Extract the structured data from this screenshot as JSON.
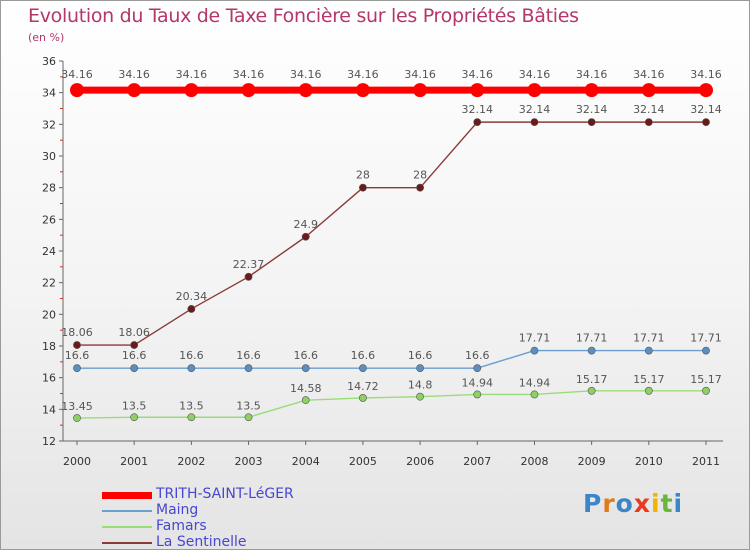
{
  "title": "Evolution du Taux de Taxe Foncière sur les Propriétés Bâties",
  "unit": "(en %)",
  "logo": {
    "letters": [
      "P",
      "r",
      "o",
      "x",
      "i",
      "t",
      "i"
    ],
    "colors": [
      "#3a86c8",
      "#e07b1a",
      "#3a86c8",
      "#e83a1e",
      "#f0b400",
      "#6cb33f",
      "#3a86c8"
    ]
  },
  "chart_data": {
    "type": "line",
    "x": [
      "2000",
      "2001",
      "2002",
      "2003",
      "2004",
      "2005",
      "2006",
      "2007",
      "2008",
      "2009",
      "2010",
      "2011"
    ],
    "ylim": [
      12,
      36
    ],
    "yticks": [
      12,
      14,
      16,
      18,
      20,
      22,
      24,
      26,
      28,
      30,
      32,
      34,
      36
    ],
    "grid": false,
    "legend_position": "bottom-left",
    "series": [
      {
        "name": "TRITH-SAINT-LéGER",
        "color": "#ff0000",
        "values": [
          34.16,
          34.16,
          34.16,
          34.16,
          34.16,
          34.16,
          34.16,
          34.16,
          34.16,
          34.16,
          34.16,
          34.16
        ],
        "labels": [
          "34.16",
          "34.16",
          "34.16",
          "34.16",
          "34.16",
          "34.16",
          "34.16",
          "34.16",
          "34.16",
          "34.16",
          "34.16",
          "34.16"
        ]
      },
      {
        "name": "Maing",
        "color": "#6b9fcf",
        "values": [
          16.6,
          16.6,
          16.6,
          16.6,
          16.6,
          16.6,
          16.6,
          16.6,
          17.71,
          17.71,
          17.71,
          17.71
        ],
        "labels": [
          "16.6",
          "16.6",
          "16.6",
          "16.6",
          "16.6",
          "16.6",
          "16.6",
          "16.6",
          "17.71",
          "17.71",
          "17.71",
          "17.71"
        ]
      },
      {
        "name": "Famars",
        "color": "#99dd77",
        "values": [
          13.45,
          13.5,
          13.5,
          13.5,
          14.58,
          14.72,
          14.8,
          14.94,
          14.94,
          15.17,
          15.17,
          15.17
        ],
        "labels": [
          "13.45",
          "13.5",
          "13.5",
          "13.5",
          "14.58",
          "14.72",
          "14.8",
          "14.94",
          "14.94",
          "15.17",
          "15.17",
          "15.17"
        ]
      },
      {
        "name": "La Sentinelle",
        "color": "#8b3a3a",
        "values": [
          18.06,
          18.06,
          20.34,
          22.37,
          24.9,
          28,
          28,
          32.14,
          32.14,
          32.14,
          32.14,
          32.14
        ],
        "labels": [
          "18.06",
          "18.06",
          "20.34",
          "22.37",
          "24.9",
          "28",
          "28",
          "32.14",
          "32.14",
          "32.14",
          "32.14",
          "32.14"
        ]
      }
    ]
  }
}
